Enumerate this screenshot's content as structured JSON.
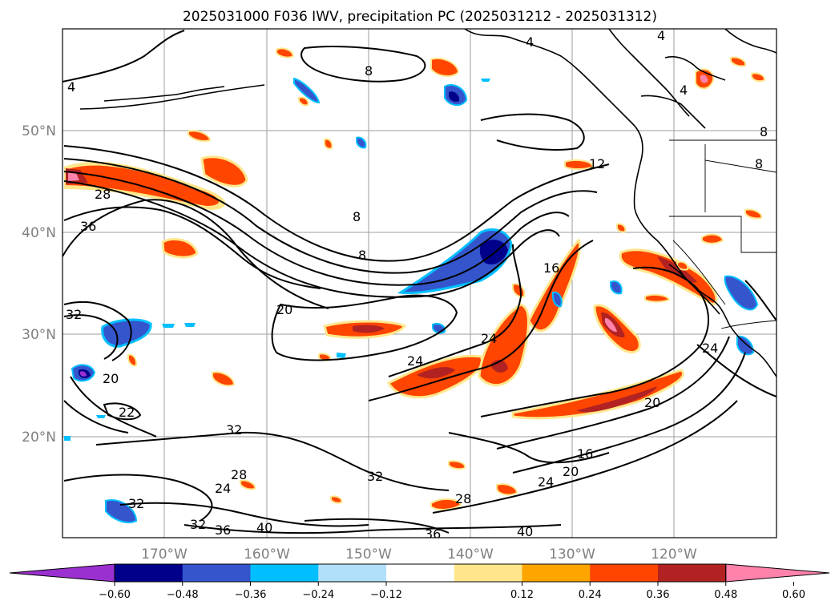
{
  "title": "2025031000 F036 IWV, precipitation PC (2025031212 - 2025031312)",
  "lat_labels": [
    "50°N",
    "40°N",
    "30°N",
    "20°N"
  ],
  "lon_labels": [
    "170°W",
    "160°W",
    "150°W",
    "140°W",
    "130°W",
    "120°W"
  ],
  "contour_labels": [
    "4",
    "4",
    "4",
    "4",
    "8",
    "8",
    "8",
    "8",
    "8",
    "12",
    "16",
    "16",
    "20",
    "20",
    "20",
    "20",
    "24",
    "24",
    "24",
    "24",
    "24",
    "22",
    "28",
    "28",
    "28",
    "32",
    "32",
    "32",
    "32",
    "32",
    "36",
    "36",
    "36",
    "40",
    "40"
  ],
  "colorbar": {
    "tick_labels": [
      "−0.60",
      "−0.48",
      "−0.36",
      "−0.24",
      "−0.12",
      "0.12",
      "0.24",
      "0.36",
      "0.48",
      "0.60"
    ],
    "colors": [
      "#9b30d0",
      "#00008b",
      "#3455cc",
      "#00bfff",
      "#b0e0fa",
      "#ffffff",
      "#ffe68a",
      "#ffa500",
      "#ff4500",
      "#b22222",
      "#ff82ab"
    ]
  }
}
